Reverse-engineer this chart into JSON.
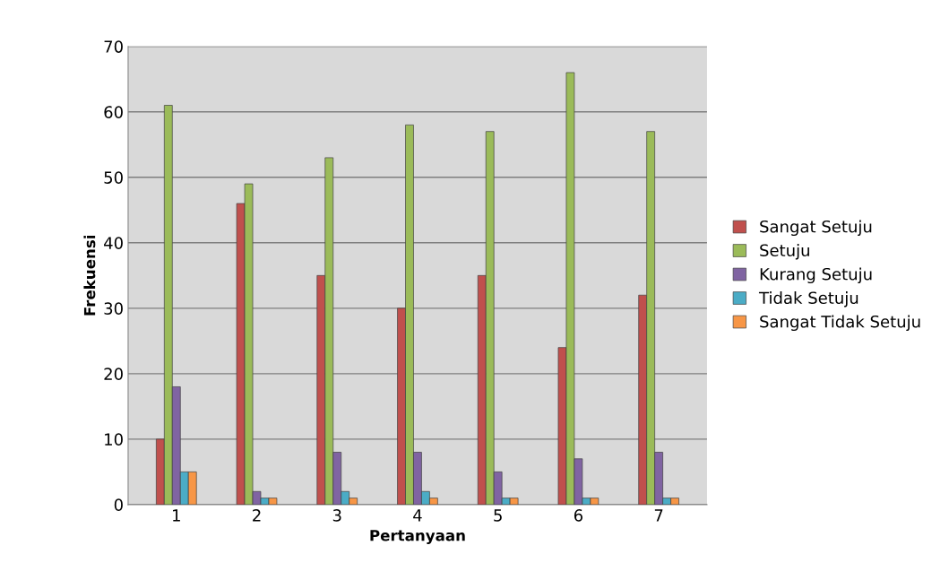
{
  "chart_data": {
    "type": "bar",
    "xlabel": "Pertanyaan",
    "ylabel": "Frekuensi",
    "categories": [
      "1",
      "2",
      "3",
      "4",
      "5",
      "6",
      "7"
    ],
    "series": [
      {
        "name": "Sangat Setuju",
        "color": "#c0504d",
        "values": [
          10,
          46,
          35,
          30,
          35,
          24,
          32
        ]
      },
      {
        "name": "Setuju",
        "color": "#9bbb59",
        "values": [
          61,
          49,
          53,
          58,
          57,
          66,
          57
        ]
      },
      {
        "name": "Kurang Setuju",
        "color": "#8064a2",
        "values": [
          18,
          2,
          8,
          8,
          5,
          7,
          8
        ]
      },
      {
        "name": "Tidak Setuju",
        "color": "#4bacc6",
        "values": [
          5,
          1,
          2,
          2,
          1,
          1,
          1
        ]
      },
      {
        "name": "Sangat Tidak Setuju",
        "color": "#f79646",
        "values": [
          5,
          1,
          1,
          1,
          1,
          1,
          1
        ]
      }
    ],
    "ylim": [
      0,
      70
    ],
    "yticks": [
      0,
      10,
      20,
      30,
      40,
      50,
      60,
      70
    ],
    "grid": "y",
    "legend": "right"
  }
}
